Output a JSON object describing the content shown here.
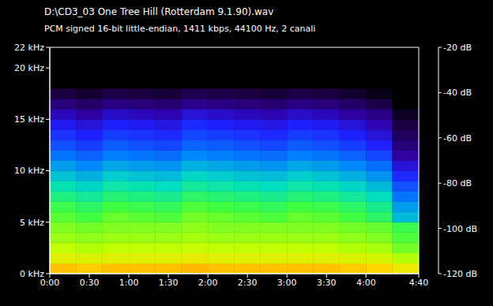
{
  "chart_data": {
    "type": "heatmap",
    "title": "D:\\CD3_03 One Tree Hill (Rotterdam 9.1.90).wav",
    "subtitle": "PCM signed 16-bit little-endian, 1411 kbps, 44100 Hz, 2 canali",
    "xlim": [
      0,
      280
    ],
    "xticks": [
      {
        "value": 0,
        "label": "0:00"
      },
      {
        "value": 30,
        "label": "0:30"
      },
      {
        "value": 60,
        "label": "1:00"
      },
      {
        "value": 90,
        "label": "1:30"
      },
      {
        "value": 120,
        "label": "2:00"
      },
      {
        "value": 150,
        "label": "2:30"
      },
      {
        "value": 180,
        "label": "3:00"
      },
      {
        "value": 210,
        "label": "3:30"
      },
      {
        "value": 240,
        "label": "4:00"
      },
      {
        "value": 280,
        "label": "4:40"
      }
    ],
    "ylim": [
      0,
      22
    ],
    "yticks": [
      {
        "value": 0,
        "label": "0 kHz"
      },
      {
        "value": 5,
        "label": "5 kHz"
      },
      {
        "value": 10,
        "label": "10 kHz"
      },
      {
        "value": 15,
        "label": "15 kHz"
      },
      {
        "value": 20,
        "label": "20 kHz"
      },
      {
        "value": 22,
        "label": "22 kHz"
      }
    ],
    "x_bins": [
      0,
      20,
      40,
      60,
      80,
      100,
      120,
      140,
      160,
      180,
      200,
      220,
      240,
      260,
      280
    ],
    "y_bins": [
      0,
      1,
      2,
      3,
      4,
      5,
      6,
      7,
      8,
      9,
      10,
      11,
      12,
      13,
      14,
      15,
      16,
      17,
      18,
      19,
      20,
      21,
      22
    ],
    "cells": [
      [
        -42,
        -43,
        -42,
        -42,
        -42,
        -41,
        -42,
        -42,
        -42,
        -42,
        -42,
        -43,
        -44,
        -48
      ],
      [
        -50,
        -51,
        -50,
        -50,
        -50,
        -49,
        -50,
        -50,
        -50,
        -50,
        -50,
        -51,
        -52,
        -56
      ],
      [
        -55,
        -56,
        -55,
        -55,
        -55,
        -54,
        -55,
        -55,
        -55,
        -55,
        -55,
        -56,
        -57,
        -61
      ],
      [
        -58,
        -59,
        -58,
        -58,
        -58,
        -57,
        -58,
        -58,
        -58,
        -58,
        -58,
        -59,
        -60,
        -64
      ],
      [
        -60,
        -61,
        -60,
        -60,
        -60,
        -59,
        -60,
        -60,
        -60,
        -60,
        -60,
        -61,
        -62,
        -66
      ],
      [
        -63,
        -65,
        -62,
        -63,
        -64,
        -61,
        -62,
        -63,
        -64,
        -62,
        -63,
        -65,
        -68,
        -79
      ],
      [
        -66,
        -68,
        -65,
        -66,
        -67,
        -64,
        -65,
        -66,
        -67,
        -65,
        -66,
        -68,
        -71,
        -82
      ],
      [
        -70,
        -72,
        -69,
        -70,
        -71,
        -68,
        -69,
        -70,
        -71,
        -69,
        -70,
        -72,
        -75,
        -86
      ],
      [
        -74,
        -76,
        -73,
        -74,
        -75,
        -72,
        -73,
        -74,
        -75,
        -73,
        -74,
        -76,
        -79,
        -90
      ],
      [
        -78,
        -80,
        -77,
        -78,
        -79,
        -76,
        -77,
        -78,
        -79,
        -77,
        -78,
        -80,
        -83,
        -94
      ],
      [
        -82,
        -84,
        -81,
        -82,
        -83,
        -80,
        -81,
        -82,
        -83,
        -81,
        -82,
        -84,
        -87,
        -98
      ],
      [
        -86,
        -88,
        -85,
        -86,
        -87,
        -84,
        -85,
        -86,
        -87,
        -85,
        -86,
        -88,
        -91,
        -102
      ],
      [
        -90,
        -92,
        -89,
        -90,
        -91,
        -88,
        -89,
        -90,
        -91,
        -89,
        -90,
        -92,
        -95,
        -106
      ],
      [
        -93,
        -95,
        -92,
        -93,
        -94,
        -91,
        -92,
        -93,
        -94,
        -92,
        -93,
        -95,
        -98,
        -109
      ],
      [
        -96,
        -98,
        -95,
        -96,
        -97,
        -94,
        -95,
        -96,
        -97,
        -95,
        -96,
        -98,
        -101,
        -112
      ],
      [
        -100,
        -102,
        -99,
        -100,
        -101,
        -98,
        -99,
        -100,
        -101,
        -99,
        -100,
        -102,
        -105,
        -116
      ],
      [
        -106,
        -108,
        -105,
        -106,
        -107,
        -104,
        -105,
        -106,
        -107,
        -105,
        -106,
        -108,
        -111,
        -120
      ],
      [
        -112,
        -114,
        -111,
        -112,
        -113,
        -110,
        -111,
        -112,
        -113,
        -111,
        -112,
        -114,
        -117,
        -120
      ],
      [
        -120,
        -120,
        -120,
        -120,
        -120,
        -120,
        -120,
        -120,
        -120,
        -120,
        -120,
        -120,
        -120,
        -120
      ],
      [
        -120,
        -120,
        -120,
        -120,
        -120,
        -120,
        -120,
        -120,
        -120,
        -120,
        -120,
        -120,
        -120,
        -120
      ],
      [
        -120,
        -120,
        -120,
        -120,
        -120,
        -120,
        -120,
        -120,
        -120,
        -120,
        -120,
        -120,
        -120,
        -120
      ],
      [
        -120,
        -120,
        -120,
        -120,
        -120,
        -120,
        -120,
        -120,
        -120,
        -120,
        -120,
        -120,
        -120,
        -120
      ]
    ],
    "colorbar_range": [
      -120,
      -20
    ],
    "colorbar_ticks": [
      {
        "value": -20,
        "label": "-20 dB"
      },
      {
        "value": -40,
        "label": "-40 dB"
      },
      {
        "value": -60,
        "label": "-60 dB"
      },
      {
        "value": -80,
        "label": "-80 dB"
      },
      {
        "value": -100,
        "label": "-100 dB"
      },
      {
        "value": -120,
        "label": "-120 dB"
      }
    ]
  }
}
